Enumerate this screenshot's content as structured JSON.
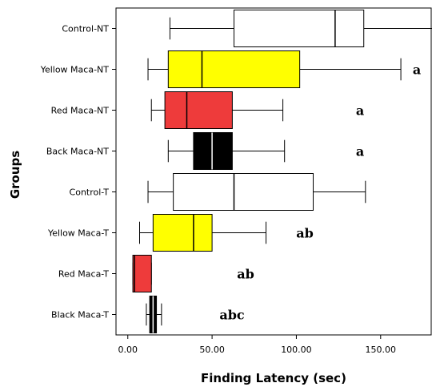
{
  "chart_data": {
    "type": "boxplot",
    "orientation": "horizontal",
    "xlabel": "Finding Latency (sec)",
    "ylabel": "Groups",
    "xlim": [
      -7,
      180
    ],
    "xticks": [
      0,
      50,
      100,
      150
    ],
    "xtick_labels": [
      "0.00",
      "50.00",
      "100.00",
      "150.00"
    ],
    "grid": false,
    "groups": [
      {
        "name": "Control-NT",
        "min": 25,
        "q1": 63,
        "median": 123,
        "q3": 140,
        "max": 181,
        "color": "#ffffff",
        "annotation": ""
      },
      {
        "name": "Yellow Maca-NT",
        "min": 12,
        "q1": 24,
        "median": 44,
        "q3": 102,
        "max": 162,
        "color": "#ffff00",
        "annotation": "a"
      },
      {
        "name": "Red Maca-NT",
        "min": 14,
        "q1": 22,
        "median": 35,
        "q3": 62,
        "max": 92,
        "color": "#ee3b3b",
        "annotation": "a"
      },
      {
        "name": "Back Maca-NT",
        "min": 24,
        "q1": 39,
        "median": 50,
        "q3": 62,
        "max": 93,
        "color": "#000000",
        "annotation": "a"
      },
      {
        "name": "Control-T",
        "min": 12,
        "q1": 27,
        "median": 63,
        "q3": 110,
        "max": 141,
        "color": "#ffffff",
        "annotation": ""
      },
      {
        "name": "Yellow Maca-T",
        "min": 7,
        "q1": 15,
        "median": 39,
        "q3": 50,
        "max": 82,
        "color": "#ffff00",
        "annotation": "ab"
      },
      {
        "name": "Red Maca-T",
        "min": 3,
        "q1": 3,
        "median": 4,
        "q3": 14,
        "max": 14,
        "color": "#ee3b3b",
        "annotation": "ab"
      },
      {
        "name": "Black Maca-T",
        "min": 11,
        "q1": 13,
        "median": 15,
        "q3": 17,
        "max": 20,
        "color": "#000000",
        "annotation": "abc"
      }
    ]
  }
}
